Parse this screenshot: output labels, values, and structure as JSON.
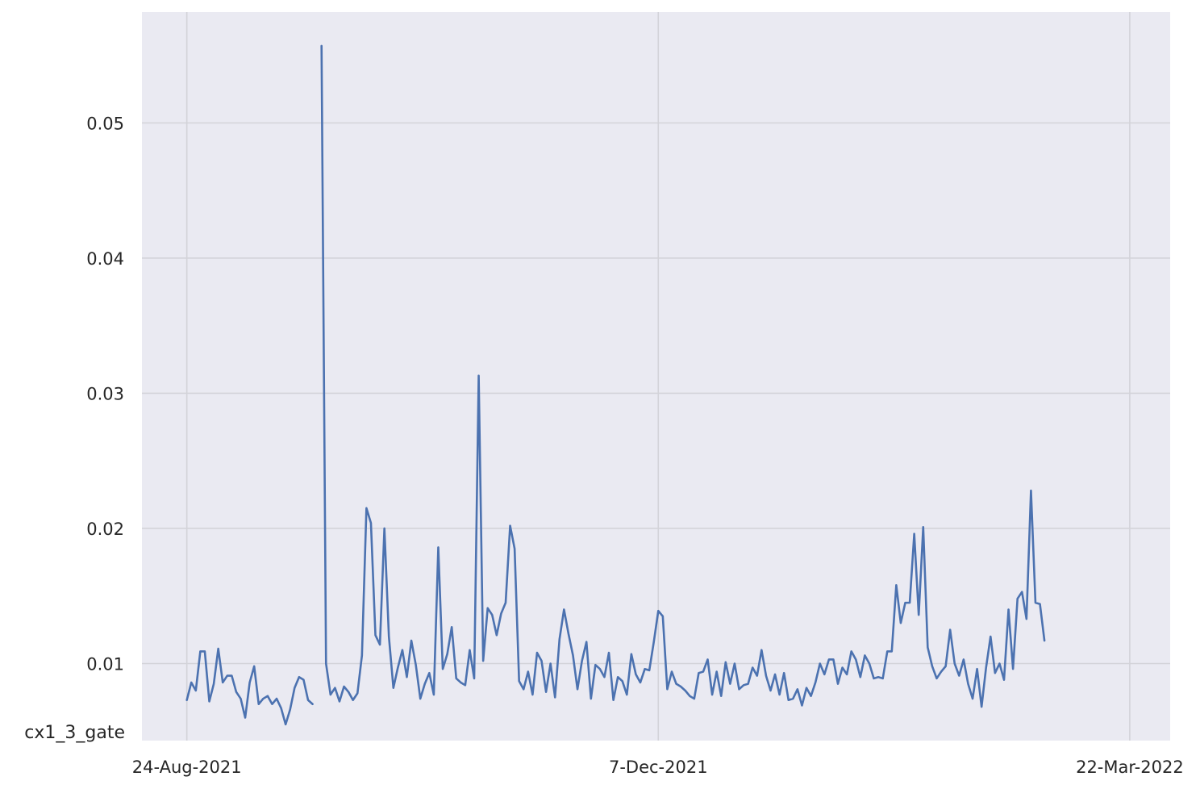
{
  "chart_data": {
    "type": "line",
    "title": "",
    "xlabel": "",
    "ylabel": "",
    "series_label": "cx1_3_gate",
    "grid": true,
    "background_color": "#eaeaf2",
    "grid_color": "#d3d3d9",
    "line_color": "#4c72b0",
    "x_ticks": [
      {
        "date": "2021-08-24",
        "label": "24-Aug-2021"
      },
      {
        "date": "2021-12-07",
        "label": "7-Dec-2021"
      },
      {
        "date": "2022-03-22",
        "label": "22-Mar-2022"
      }
    ],
    "y_ticks": [
      {
        "value": 0.01,
        "label": "0.01"
      },
      {
        "value": 0.02,
        "label": "0.02"
      },
      {
        "value": 0.03,
        "label": "0.03"
      },
      {
        "value": 0.04,
        "label": "0.04"
      },
      {
        "value": 0.05,
        "label": "0.05"
      }
    ],
    "xlim": [
      "2021-08-14",
      "2022-03-31"
    ],
    "ylim": [
      0.0043,
      0.0582
    ],
    "series": [
      {
        "segments": [
          {
            "start_date": "2021-08-24",
            "values": [
              0.0073,
              0.0086,
              0.008,
              0.0109,
              0.0109,
              0.0072,
              0.0085,
              0.0111,
              0.0086,
              0.0091,
              0.0091,
              0.0079,
              0.0074,
              0.006,
              0.0086,
              0.0098,
              0.007,
              0.0074,
              0.0076,
              0.007,
              0.0074,
              0.0067,
              0.0055,
              0.0066,
              0.0082,
              0.009,
              0.0088,
              0.0073,
              0.007
            ]
          },
          {
            "start_date": "2021-09-23",
            "values": [
              0.0557,
              0.01,
              0.0077,
              0.0082,
              0.0072,
              0.0083,
              0.0079,
              0.0073,
              0.0078,
              0.0106,
              0.0215,
              0.0204,
              0.0121,
              0.0114,
              0.02,
              0.012,
              0.0082,
              0.0097,
              0.011,
              0.009,
              0.0117,
              0.0099,
              0.0074,
              0.0085,
              0.0093,
              0.0077,
              0.0186,
              0.0096,
              0.0107,
              0.0127,
              0.0089,
              0.0086,
              0.0084,
              0.011,
              0.0089,
              0.0313,
              0.0102,
              0.0141,
              0.0136,
              0.0121,
              0.0137,
              0.0145,
              0.0202,
              0.0185,
              0.0087,
              0.0081,
              0.0094,
              0.0077,
              0.0108,
              0.0102,
              0.0079,
              0.01,
              0.0075,
              0.0118,
              0.014,
              0.0122,
              0.0106,
              0.0081,
              0.0102,
              0.0116,
              0.0074,
              0.0099,
              0.0096,
              0.009,
              0.0108,
              0.0073,
              0.009,
              0.0087,
              0.0077,
              0.0107,
              0.0092,
              0.0086,
              0.0096,
              0.0095,
              0.0116,
              0.0139,
              0.0135,
              0.0081,
              0.0094,
              0.0085,
              0.0083,
              0.008,
              0.0076,
              0.0074,
              0.0093,
              0.0094,
              0.0103,
              0.0077,
              0.0094,
              0.0076,
              0.0101,
              0.0085,
              0.01,
              0.0081,
              0.0084,
              0.0085,
              0.0097,
              0.0091,
              0.011,
              0.0091,
              0.008,
              0.0092,
              0.0077,
              0.0093,
              0.0073,
              0.0074,
              0.0081,
              0.0069,
              0.0082,
              0.0076,
              0.0086,
              0.01,
              0.0092,
              0.0103,
              0.0103,
              0.0085,
              0.0097,
              0.0092,
              0.0109,
              0.0103,
              0.009,
              0.0106,
              0.01,
              0.0089,
              0.009,
              0.0089,
              0.0109,
              0.0109,
              0.0158,
              0.013,
              0.0145,
              0.0145,
              0.0196,
              0.0136,
              0.0201,
              0.0112,
              0.0098,
              0.0089,
              0.0094,
              0.0098,
              0.0125,
              0.01,
              0.0091,
              0.0103,
              0.0085,
              0.0074,
              0.0096,
              0.0068,
              0.0097,
              0.012,
              0.0093,
              0.01,
              0.0088,
              0.014,
              0.0096,
              0.0148,
              0.0153,
              0.0133,
              0.0228,
              0.0145,
              0.0144,
              0.0117
            ]
          }
        ]
      }
    ]
  }
}
